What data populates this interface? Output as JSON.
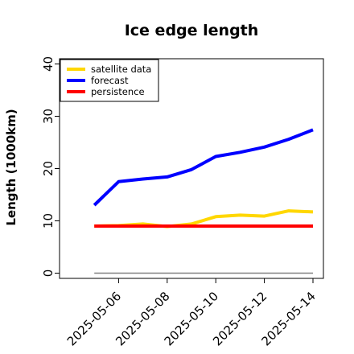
{
  "chart_data": {
    "type": "line",
    "title": "Ice edge length",
    "ylabel": "Length (1000km)",
    "xlabel": "",
    "ylim": [
      -1,
      41
    ],
    "yticks": [
      0,
      10,
      20,
      30,
      40
    ],
    "x": [
      "2025-05-05",
      "2025-05-06",
      "2025-05-07",
      "2025-05-08",
      "2025-05-09",
      "2025-05-10",
      "2025-05-11",
      "2025-05-12",
      "2025-05-13",
      "2025-05-14"
    ],
    "xlim": [
      "2025-05-04",
      "2025-05-14"
    ],
    "xticks": [
      "2025-05-06",
      "2025-05-08",
      "2025-05-10",
      "2025-05-12",
      "2025-05-14"
    ],
    "highlight_tick": "2025-05-06",
    "highlight_color": "#2e8b2e",
    "series": [
      {
        "name": "satellite data",
        "color": "#ffd700",
        "values": [
          9.0,
          9.1,
          9.4,
          8.9,
          9.4,
          10.8,
          11.1,
          10.9,
          11.9,
          11.7
        ]
      },
      {
        "name": "forecast",
        "color": "#0000ff",
        "values": [
          13.0,
          17.5,
          18.0,
          18.4,
          19.8,
          22.3,
          23.1,
          24.1,
          25.6,
          27.4
        ]
      },
      {
        "name": "persistence",
        "color": "#ff0000",
        "values": [
          9.0,
          9.0,
          9.0,
          9.0,
          9.0,
          9.0,
          9.0,
          9.0,
          9.0,
          9.0
        ]
      }
    ],
    "reference_line": {
      "y": 0,
      "color": "#808080"
    },
    "legend_position": "top-left",
    "grid": false
  }
}
